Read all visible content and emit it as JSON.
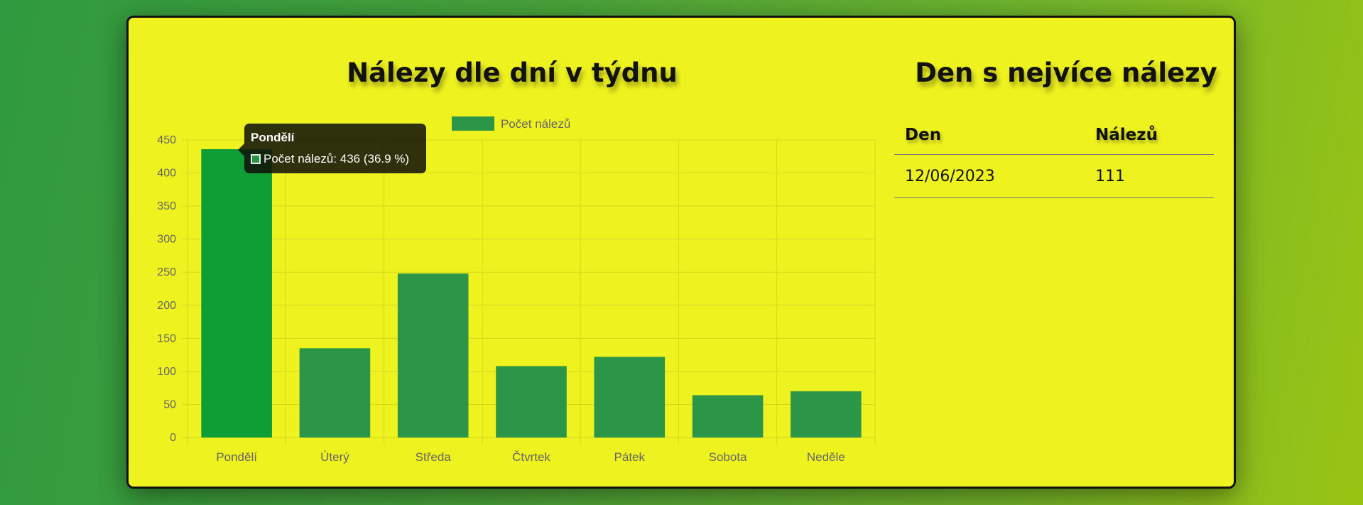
{
  "chart_section": {
    "title": "Nálezy dle dní v týdnu"
  },
  "table_section": {
    "title": "Den s nejvíce nálezy",
    "headers": {
      "day": "Den",
      "count": "Nálezů"
    },
    "rows": [
      {
        "day": "12/06/2023",
        "count": "111"
      }
    ]
  },
  "tooltip": {
    "title": "Pondělí",
    "label": "Počet nálezů: 436 (36.9 %)"
  },
  "chart_data": {
    "type": "bar",
    "categories": [
      "Pondělí",
      "Úterý",
      "Středa",
      "Čtvrtek",
      "Pátek",
      "Sobota",
      "Neděle"
    ],
    "series": [
      {
        "name": "Počet nálezů",
        "values": [
          436,
          135,
          248,
          108,
          122,
          64,
          70
        ]
      }
    ],
    "title": "Nálezy dle dní v týdnu",
    "xlabel": "",
    "ylabel": "",
    "ylim": [
      0,
      450
    ],
    "yticks": [
      0,
      50,
      100,
      150,
      200,
      250,
      300,
      350,
      400,
      450
    ],
    "grid": true,
    "legend": "top-center",
    "highlighted_category": "Pondělí",
    "colors": {
      "bar": "#2b9648",
      "bar_active": "#0e9e35",
      "grid": "#d6d81e",
      "tick_text": "#666666"
    }
  }
}
